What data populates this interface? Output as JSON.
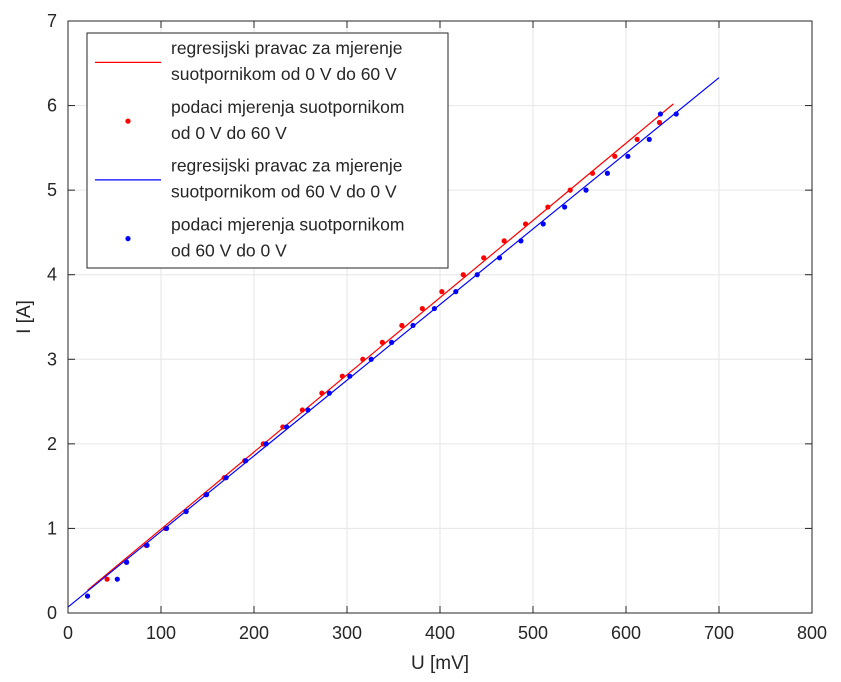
{
  "chart_data": {
    "type": "scatter",
    "xlabel": "U [mV]",
    "ylabel": "I [A]",
    "xlim": [
      0,
      800
    ],
    "ylim": [
      0,
      7
    ],
    "xticks": [
      0,
      100,
      200,
      300,
      400,
      500,
      600,
      700,
      800
    ],
    "yticks": [
      0,
      1,
      2,
      3,
      4,
      5,
      6,
      7
    ],
    "grid": true,
    "legend_position": "top-left",
    "colors": {
      "red": "#ff0000",
      "blue": "#0000ff"
    },
    "series": [
      {
        "name": "regresijski pravac za mjerenje suotpornikom od 0 V do 60 V",
        "legend_lines": [
          "regresijski pravac za mjerenje",
          "suotpornikom od 0 V do 60 V"
        ],
        "kind": "line",
        "color": "#ff0000",
        "x": [
          21,
          651
        ],
        "y": [
          0.27,
          6.02
        ]
      },
      {
        "name": "podaci mjerenja suotpornikom od 0 V do 60 V",
        "legend_lines": [
          "podaci mjerenja suotpornikom",
          "od 0 V do 60 V"
        ],
        "kind": "points",
        "color": "#ff0000",
        "x": [
          21,
          42,
          63,
          84,
          105,
          127,
          148,
          168,
          190,
          210,
          231,
          252,
          273,
          295,
          317,
          338,
          359,
          381,
          402,
          425,
          447,
          469,
          492,
          516,
          540,
          564,
          588,
          612,
          636
        ],
        "y": [
          0.2,
          0.4,
          0.6,
          0.8,
          1.0,
          1.2,
          1.4,
          1.6,
          1.8,
          2.0,
          2.2,
          2.4,
          2.6,
          2.8,
          3.0,
          3.2,
          3.4,
          3.6,
          3.8,
          4.0,
          4.2,
          4.4,
          4.6,
          4.8,
          5.0,
          5.2,
          5.4,
          5.6,
          5.8
        ]
      },
      {
        "name": "regresijski pravac za mjerenje suotpornikom od 60 V do 0 V",
        "legend_lines": [
          "regresijski pravac za mjerenje",
          "suotpornikom od 60 V do 0 V"
        ],
        "kind": "line",
        "color": "#0000ff",
        "x": [
          0,
          700
        ],
        "y": [
          0.07,
          6.33
        ]
      },
      {
        "name": "podaci mjerenja suotpornikom od 60 V do 0 V",
        "legend_lines": [
          "podaci mjerenja suotpornikom",
          "od 60 V do 0 V"
        ],
        "kind": "points",
        "color": "#0000ff",
        "x": [
          21,
          53,
          63,
          85,
          106,
          127,
          149,
          170,
          191,
          213,
          235,
          258,
          281,
          303,
          326,
          348,
          371,
          394,
          417,
          440,
          464,
          487,
          511,
          534,
          557,
          580,
          602,
          625,
          637,
          654
        ],
        "y": [
          0.2,
          0.4,
          0.6,
          0.8,
          1.0,
          1.2,
          1.4,
          1.6,
          1.8,
          2.0,
          2.2,
          2.4,
          2.6,
          2.8,
          3.0,
          3.2,
          3.4,
          3.6,
          3.8,
          4.0,
          4.2,
          4.4,
          4.6,
          4.8,
          5.0,
          5.2,
          5.4,
          5.6,
          5.9,
          5.9
        ]
      }
    ]
  }
}
